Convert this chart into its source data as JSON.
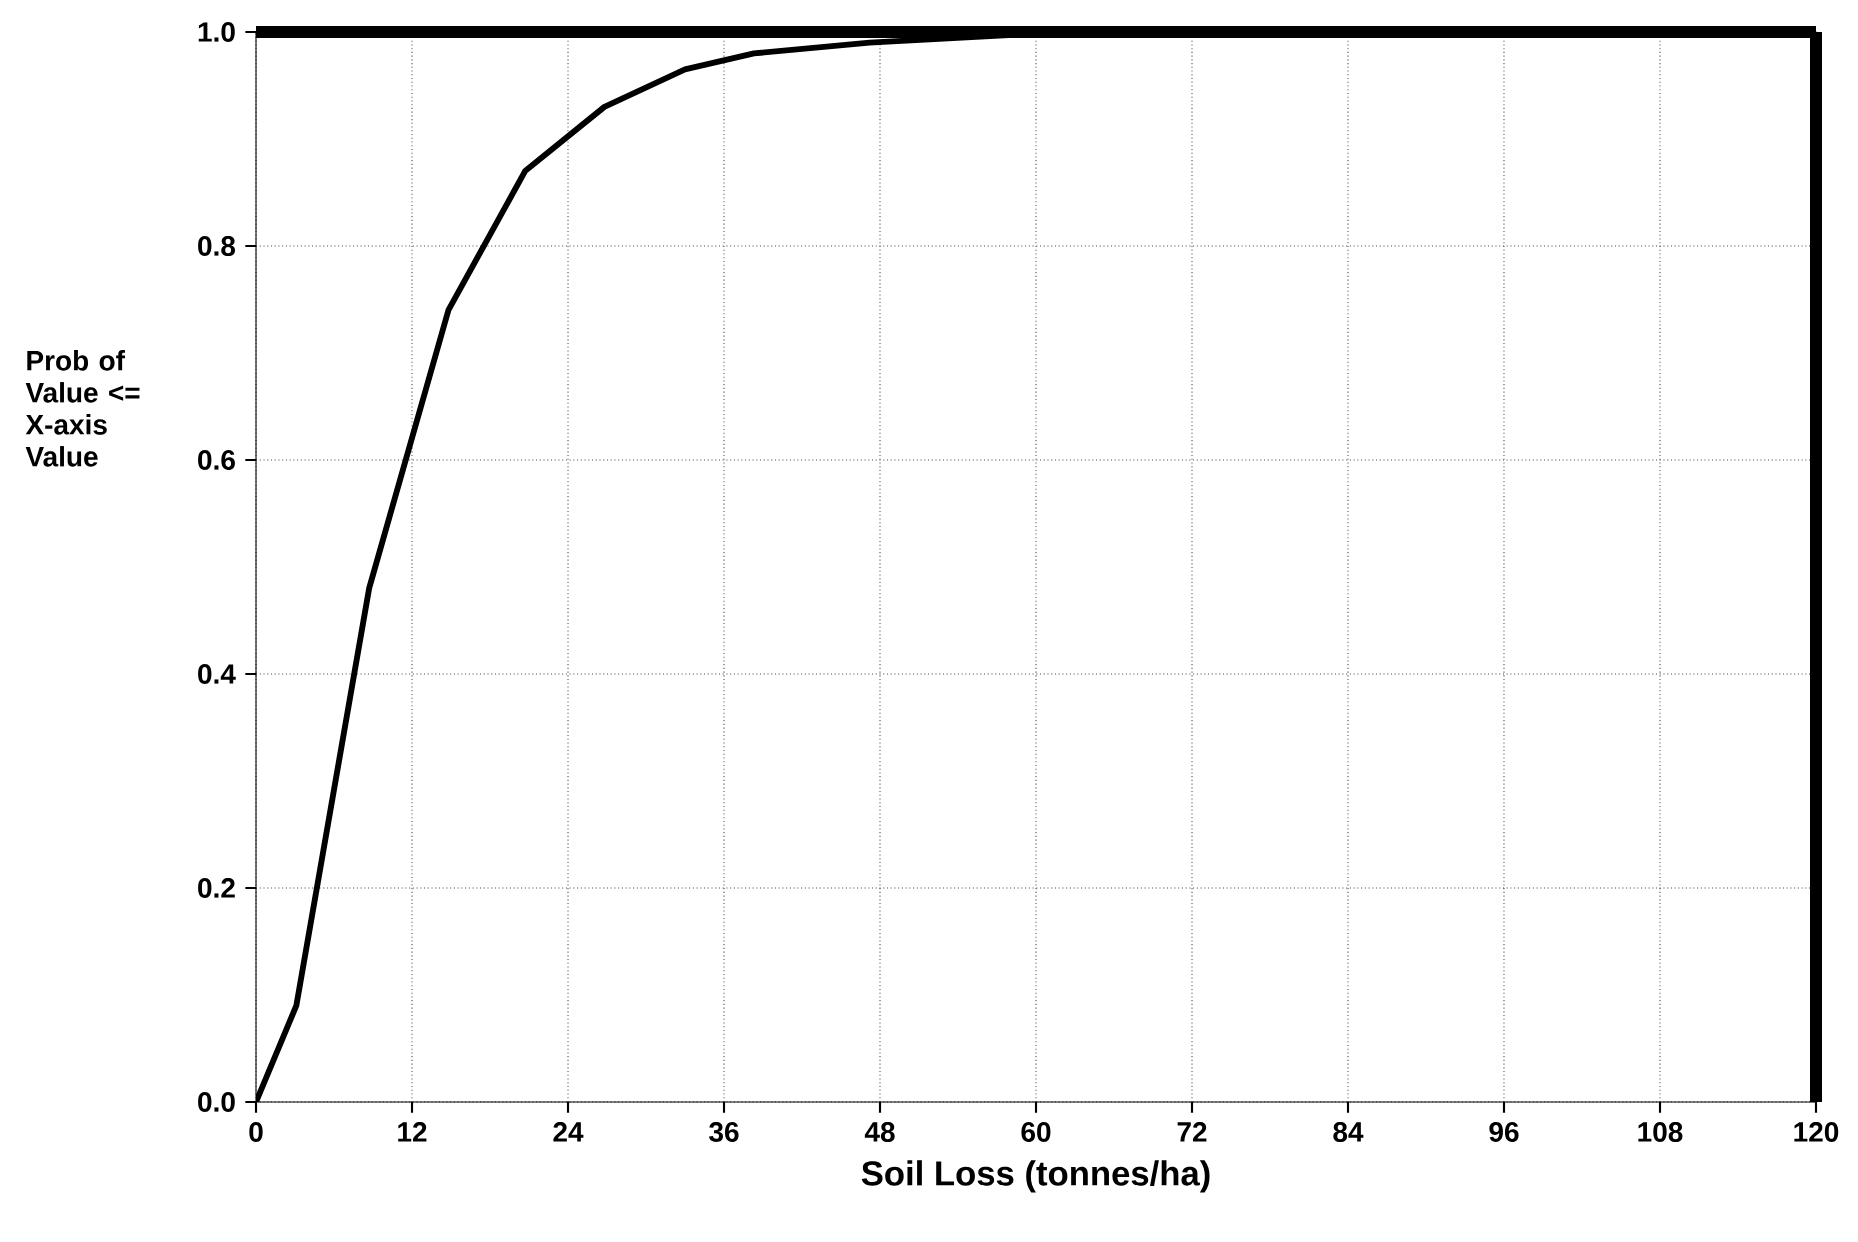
{
  "chart_data": {
    "type": "line",
    "xlabel": "Soil Loss (tonnes/ha)",
    "ylabel": "Prob of Value <= X-axis Value",
    "x": [
      0,
      3.1,
      8.7,
      14.8,
      20.7,
      26.8,
      33,
      38.3,
      47.2,
      59.2,
      72,
      120
    ],
    "series": [
      {
        "color": "#000000",
        "values": [
          0,
          0.09,
          0.48,
          0.74,
          0.87,
          0.93,
          0.965,
          0.98,
          0.99,
          0.998,
          1.0,
          1.0
        ]
      }
    ],
    "xlim": [
      0,
      120
    ],
    "ylim": [
      0,
      1
    ],
    "xticks": [
      0,
      12,
      24,
      36,
      48,
      60,
      72,
      84,
      96,
      108,
      120
    ],
    "yticks": [
      {
        "value": 0,
        "label": "0.0"
      },
      {
        "value": 0.2,
        "label": "0.2"
      },
      {
        "value": 0.4,
        "label": "0.4"
      },
      {
        "value": 0.6,
        "label": "0.6"
      },
      {
        "value": 0.8,
        "label": "0.8"
      },
      {
        "value": 1.0,
        "label": "1.0"
      }
    ],
    "grid": true,
    "marker": "none",
    "line_style": "solid"
  }
}
